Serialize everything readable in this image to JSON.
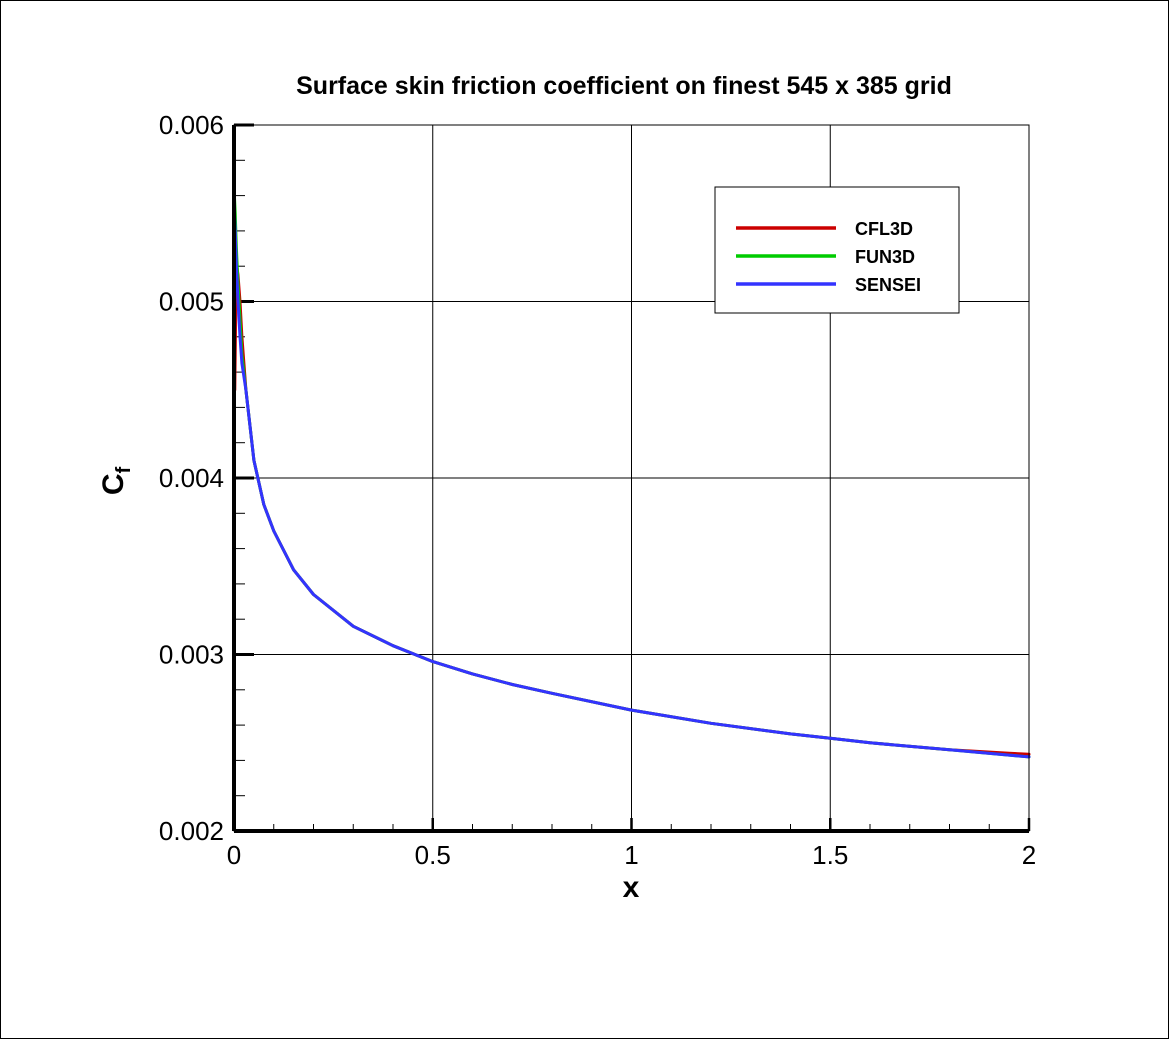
{
  "chart_data": {
    "type": "line",
    "title": "Surface skin friction coefficient on finest 545 x 385 grid",
    "xlabel": "x",
    "ylabel": "C",
    "ylabel_subscript": "f",
    "xlim": [
      0,
      2
    ],
    "ylim": [
      0.002,
      0.006
    ],
    "grid": true,
    "legend_position": "top-right",
    "x_ticks": [
      {
        "value": 0,
        "label": "0"
      },
      {
        "value": 0.5,
        "label": "0.5"
      },
      {
        "value": 1,
        "label": "1"
      },
      {
        "value": 1.5,
        "label": "1.5"
      },
      {
        "value": 2,
        "label": "2"
      }
    ],
    "y_ticks": [
      {
        "value": 0.002,
        "label": "0.002"
      },
      {
        "value": 0.003,
        "label": "0.003"
      },
      {
        "value": 0.004,
        "label": "0.004"
      },
      {
        "value": 0.005,
        "label": "0.005"
      },
      {
        "value": 0.006,
        "label": "0.006"
      }
    ],
    "series": [
      {
        "name": "CFL3D",
        "color": "#cc0000",
        "x": [
          0.002,
          0.004,
          0.007,
          0.01,
          0.015,
          0.02,
          0.03,
          0.05,
          0.075,
          0.1,
          0.15,
          0.2,
          0.3,
          0.4,
          0.5,
          0.6,
          0.7,
          0.8,
          1.0,
          1.2,
          1.4,
          1.5,
          1.6,
          1.8,
          1.95,
          2.0
        ],
        "y": [
          0.0045,
          0.0049,
          0.0052,
          0.00515,
          0.005,
          0.0048,
          0.0045,
          0.0041,
          0.00385,
          0.0037,
          0.00348,
          0.00334,
          0.00316,
          0.00305,
          0.00296,
          0.00289,
          0.00283,
          0.00278,
          0.002685,
          0.00261,
          0.00255,
          0.002525,
          0.0025,
          0.00246,
          0.00244,
          0.002435
        ]
      },
      {
        "name": "FUN3D",
        "color": "#00cc00",
        "x": [
          0.001,
          0.003,
          0.006,
          0.01,
          0.015,
          0.02,
          0.03,
          0.05,
          0.075,
          0.1,
          0.15,
          0.2,
          0.3,
          0.4,
          0.5,
          0.6,
          0.7,
          0.8,
          1.0,
          1.2,
          1.4,
          1.5,
          1.6,
          1.8,
          1.95,
          2.0
        ],
        "y": [
          0.0056,
          0.0055,
          0.0053,
          0.0051,
          0.0049,
          0.0047,
          0.0045,
          0.0041,
          0.00385,
          0.0037,
          0.00348,
          0.00334,
          0.00316,
          0.00305,
          0.00296,
          0.00289,
          0.00283,
          0.00278,
          0.002685,
          0.00261,
          0.00255,
          0.002525,
          0.0025,
          0.00246,
          0.00243,
          0.00242
        ]
      },
      {
        "name": "SENSEI",
        "color": "#3333ff",
        "x": [
          0.001,
          0.003,
          0.006,
          0.01,
          0.015,
          0.02,
          0.03,
          0.05,
          0.075,
          0.1,
          0.15,
          0.2,
          0.3,
          0.4,
          0.5,
          0.6,
          0.7,
          0.8,
          1.0,
          1.2,
          1.4,
          1.5,
          1.6,
          1.8,
          1.95,
          2.0
        ],
        "y": [
          0.0055,
          0.0054,
          0.0052,
          0.005,
          0.0048,
          0.00465,
          0.0045,
          0.0041,
          0.00385,
          0.0037,
          0.00348,
          0.00334,
          0.00316,
          0.00305,
          0.00296,
          0.00289,
          0.00283,
          0.00278,
          0.002685,
          0.00261,
          0.00255,
          0.002525,
          0.0025,
          0.00246,
          0.00243,
          0.00242
        ]
      }
    ]
  }
}
